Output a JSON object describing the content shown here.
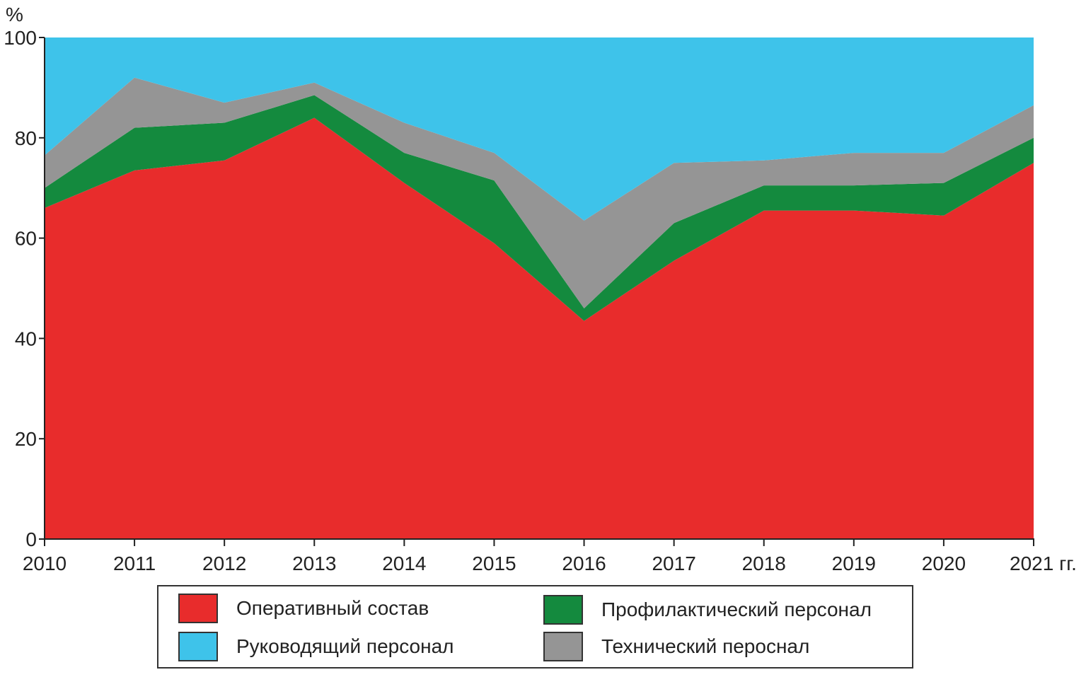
{
  "chart_data": {
    "type": "area",
    "stacked": true,
    "ylabel": "%",
    "ylim": [
      0,
      100
    ],
    "yticks": [
      "0",
      "20",
      "40",
      "60",
      "80",
      "100"
    ],
    "categories": [
      "2010",
      "2011",
      "2012",
      "2013",
      "2014",
      "2015",
      "2016",
      "2017",
      "2018",
      "2019",
      "2020",
      "2021 гг."
    ],
    "series": [
      {
        "name": "Оперативный состав",
        "color": "#e82c2c",
        "values": [
          66,
          73.5,
          75.5,
          84,
          71,
          59,
          43.5,
          55.5,
          65.5,
          65.5,
          64.5,
          75
        ]
      },
      {
        "name": "Профилактический персонал",
        "color": "#148a3e",
        "values": [
          4,
          8.5,
          7.5,
          4.5,
          6,
          12.5,
          2.5,
          7.5,
          5,
          5,
          6.5,
          5
        ]
      },
      {
        "name": "Технический пероснал",
        "color": "#959595",
        "values": [
          6.5,
          10,
          4,
          2.5,
          6,
          5.5,
          17.5,
          12,
          5,
          6.5,
          6,
          6.5
        ]
      },
      {
        "name": "Руководящий персонал",
        "color": "#3ec3ea",
        "values": [
          23.5,
          8,
          13,
          9,
          17,
          23,
          36.5,
          25,
          24.5,
          23,
          23,
          13.5
        ]
      }
    ],
    "legend_position": "bottom",
    "grid": false
  }
}
